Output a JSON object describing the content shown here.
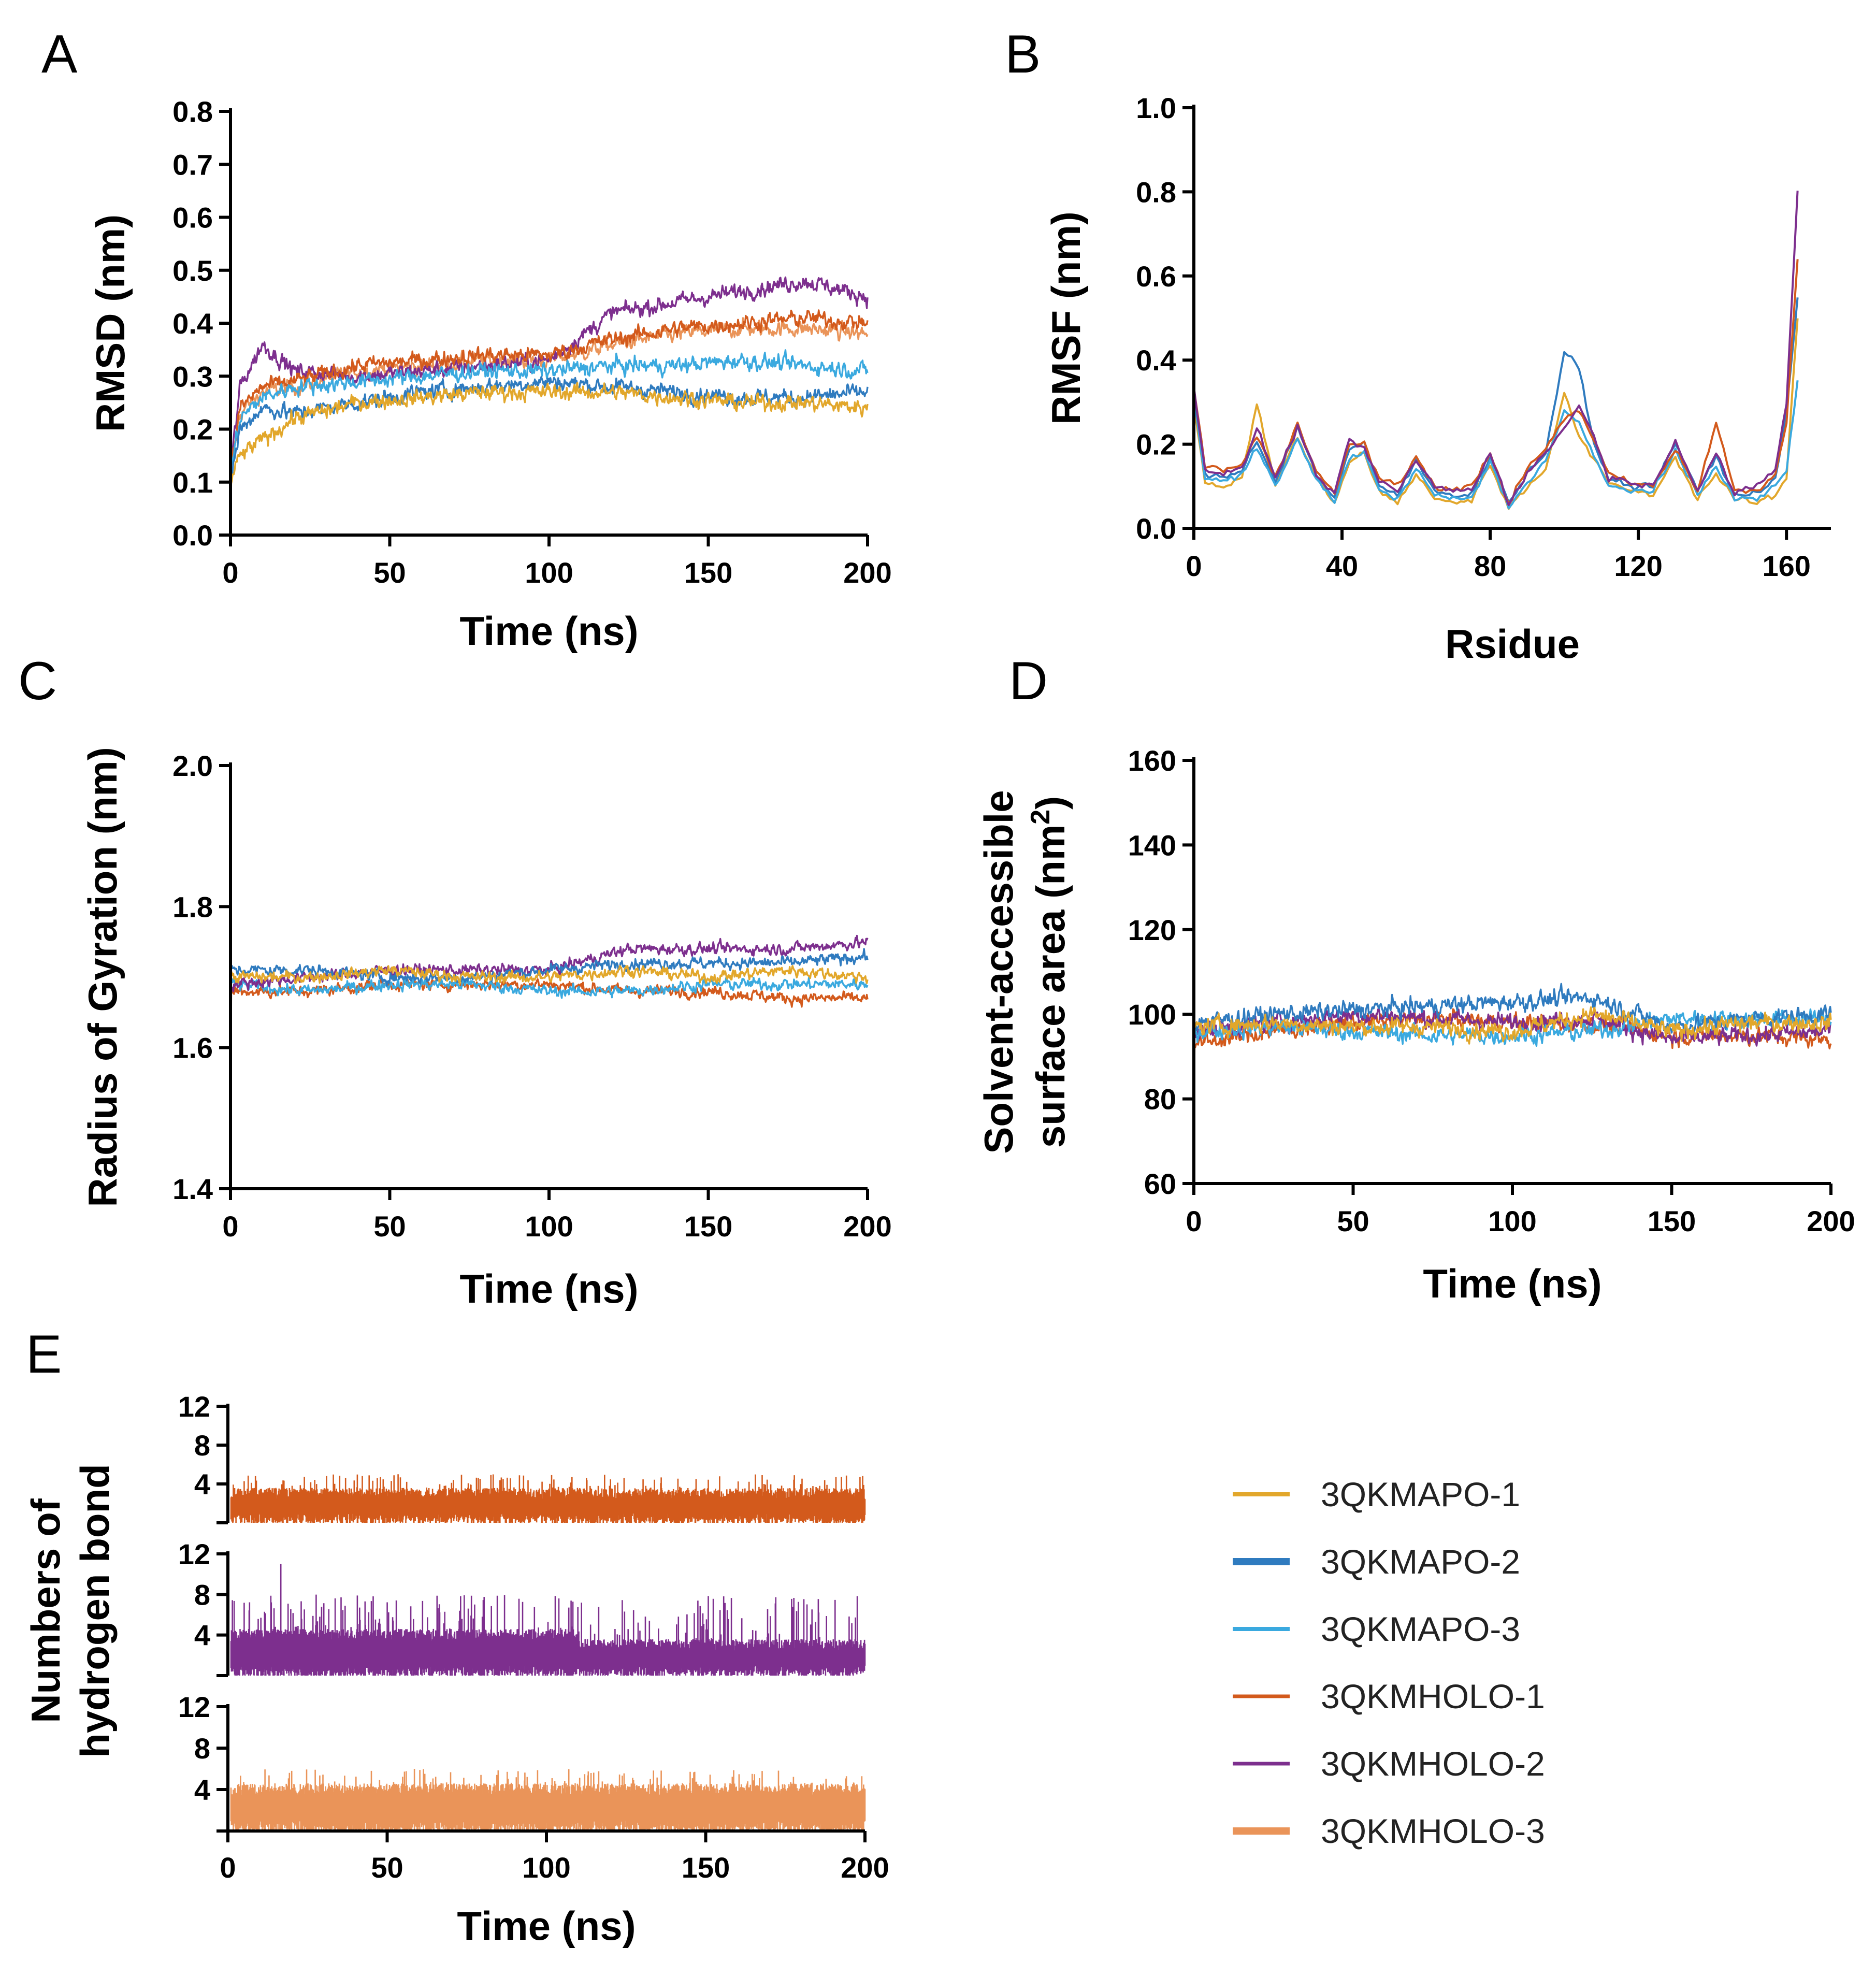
{
  "colors": {
    "3QKMAPO-1": "#E2A72B",
    "3QKMAPO-2": "#2F7BBF",
    "3QKMAPO-3": "#3AA9DF",
    "3QKMHOLO-1": "#D35A1C",
    "3QKMHOLO-2": "#7D2F8E",
    "3QKMHOLO-3": "#EA9459"
  },
  "legend": {
    "entries": [
      "3QKMAPO-1",
      "3QKMAPO-2",
      "3QKMAPO-3",
      "3QKMHOLO-1",
      "3QKMHOLO-2",
      "3QKMHOLO-3"
    ]
  },
  "chart_data": [
    {
      "panel": "A",
      "type": "line",
      "xlabel": "Time (ns)",
      "ylabel": "RMSD (nm)",
      "xlim": [
        0,
        200
      ],
      "ylim": [
        0,
        0.8
      ],
      "xticks": [
        "0",
        "50",
        "100",
        "150",
        "200"
      ],
      "yticks": [
        "0.0",
        "0.1",
        "0.2",
        "0.3",
        "0.4",
        "0.5",
        "0.6",
        "0.7",
        "0.8"
      ],
      "series": [
        {
          "name": "3QKMAPO-1",
          "x": [
            0,
            3,
            10,
            20,
            40,
            60,
            80,
            100,
            120,
            140,
            160,
            180,
            200
          ],
          "y": [
            0.1,
            0.15,
            0.18,
            0.22,
            0.25,
            0.26,
            0.27,
            0.27,
            0.27,
            0.26,
            0.25,
            0.25,
            0.24
          ]
        },
        {
          "name": "3QKMAPO-2",
          "x": [
            0,
            3,
            10,
            20,
            40,
            60,
            80,
            100,
            120,
            140,
            160,
            180,
            200
          ],
          "y": [
            0.1,
            0.2,
            0.24,
            0.23,
            0.25,
            0.27,
            0.28,
            0.29,
            0.28,
            0.27,
            0.26,
            0.26,
            0.27
          ]
        },
        {
          "name": "3QKMAPO-3",
          "x": [
            0,
            3,
            10,
            20,
            40,
            60,
            80,
            100,
            120,
            140,
            160,
            180,
            200
          ],
          "y": [
            0.12,
            0.22,
            0.26,
            0.28,
            0.29,
            0.3,
            0.31,
            0.31,
            0.32,
            0.32,
            0.33,
            0.32,
            0.31
          ]
        },
        {
          "name": "3QKMHOLO-1",
          "x": [
            0,
            3,
            10,
            20,
            40,
            60,
            80,
            100,
            120,
            140,
            160,
            180,
            200
          ],
          "y": [
            0.12,
            0.24,
            0.28,
            0.29,
            0.32,
            0.33,
            0.34,
            0.34,
            0.37,
            0.39,
            0.4,
            0.41,
            0.4
          ]
        },
        {
          "name": "3QKMHOLO-2",
          "x": [
            0,
            3,
            10,
            20,
            40,
            60,
            80,
            100,
            120,
            140,
            160,
            180,
            200
          ],
          "y": [
            0.12,
            0.28,
            0.36,
            0.31,
            0.3,
            0.31,
            0.32,
            0.33,
            0.42,
            0.44,
            0.46,
            0.48,
            0.45
          ]
        },
        {
          "name": "3QKMHOLO-3",
          "x": [
            0,
            3,
            10,
            20,
            40,
            60,
            80,
            100,
            120,
            140,
            160,
            180,
            200
          ],
          "y": [
            0.12,
            0.23,
            0.27,
            0.28,
            0.31,
            0.32,
            0.33,
            0.33,
            0.36,
            0.38,
            0.39,
            0.39,
            0.38
          ]
        }
      ]
    },
    {
      "panel": "B",
      "type": "line",
      "xlabel": "Rsidue",
      "ylabel": "RMSF (nm)",
      "xlim": [
        0,
        172
      ],
      "ylim": [
        0,
        1.0
      ],
      "xticks": [
        "0",
        "40",
        "80",
        "120",
        "160"
      ],
      "xtick_values": [
        0,
        40,
        80,
        120,
        160
      ],
      "yticks": [
        "0.0",
        "0.2",
        "0.4",
        "0.6",
        "0.8",
        "1.0"
      ],
      "series": [
        {
          "name": "3QKMAPO-1",
          "x": [
            0,
            3,
            8,
            13,
            17,
            22,
            28,
            33,
            38,
            42,
            46,
            50,
            55,
            60,
            65,
            70,
            75,
            80,
            85,
            90,
            95,
            100,
            104,
            108,
            112,
            118,
            124,
            130,
            136,
            141,
            146,
            152,
            157,
            160,
            163
          ],
          "y": [
            0.3,
            0.11,
            0.1,
            0.12,
            0.3,
            0.1,
            0.22,
            0.12,
            0.06,
            0.16,
            0.18,
            0.09,
            0.06,
            0.13,
            0.07,
            0.06,
            0.07,
            0.15,
            0.05,
            0.1,
            0.14,
            0.32,
            0.22,
            0.16,
            0.11,
            0.09,
            0.08,
            0.17,
            0.07,
            0.13,
            0.07,
            0.06,
            0.08,
            0.12,
            0.5
          ]
        },
        {
          "name": "3QKMAPO-2",
          "x": [
            0,
            3,
            8,
            13,
            17,
            22,
            28,
            33,
            38,
            42,
            46,
            50,
            55,
            60,
            65,
            70,
            75,
            80,
            85,
            90,
            95,
            100,
            104,
            108,
            112,
            118,
            124,
            130,
            136,
            141,
            146,
            152,
            157,
            160,
            163
          ],
          "y": [
            0.32,
            0.13,
            0.12,
            0.14,
            0.21,
            0.11,
            0.24,
            0.13,
            0.07,
            0.19,
            0.2,
            0.1,
            0.08,
            0.16,
            0.09,
            0.08,
            0.08,
            0.17,
            0.06,
            0.13,
            0.18,
            0.42,
            0.38,
            0.2,
            0.12,
            0.1,
            0.1,
            0.2,
            0.09,
            0.17,
            0.08,
            0.08,
            0.12,
            0.28,
            0.55
          ]
        },
        {
          "name": "3QKMAPO-3",
          "x": [
            0,
            3,
            8,
            13,
            17,
            22,
            28,
            33,
            38,
            42,
            46,
            50,
            55,
            60,
            65,
            70,
            75,
            80,
            85,
            90,
            95,
            100,
            104,
            108,
            112,
            118,
            124,
            130,
            136,
            141,
            146,
            152,
            157,
            160,
            163
          ],
          "y": [
            0.31,
            0.12,
            0.11,
            0.13,
            0.19,
            0.1,
            0.21,
            0.12,
            0.06,
            0.17,
            0.18,
            0.09,
            0.07,
            0.14,
            0.08,
            0.07,
            0.07,
            0.16,
            0.05,
            0.11,
            0.16,
            0.28,
            0.25,
            0.17,
            0.1,
            0.09,
            0.09,
            0.18,
            0.08,
            0.15,
            0.07,
            0.07,
            0.1,
            0.14,
            0.35
          ]
        },
        {
          "name": "3QKMHOLO-1",
          "x": [
            0,
            3,
            8,
            13,
            17,
            22,
            28,
            33,
            38,
            42,
            46,
            50,
            55,
            60,
            65,
            70,
            75,
            80,
            85,
            90,
            95,
            100,
            104,
            108,
            112,
            118,
            124,
            130,
            136,
            141,
            146,
            152,
            157,
            160,
            163
          ],
          "y": [
            0.33,
            0.15,
            0.14,
            0.15,
            0.22,
            0.12,
            0.25,
            0.14,
            0.08,
            0.2,
            0.2,
            0.12,
            0.1,
            0.17,
            0.1,
            0.09,
            0.1,
            0.18,
            0.06,
            0.14,
            0.19,
            0.26,
            0.28,
            0.21,
            0.13,
            0.11,
            0.1,
            0.19,
            0.09,
            0.25,
            0.09,
            0.09,
            0.13,
            0.25,
            0.64
          ]
        },
        {
          "name": "3QKMHOLO-2",
          "x": [
            0,
            3,
            8,
            13,
            17,
            22,
            28,
            33,
            38,
            42,
            46,
            50,
            55,
            60,
            65,
            70,
            75,
            80,
            85,
            90,
            95,
            100,
            104,
            108,
            112,
            118,
            124,
            130,
            136,
            141,
            146,
            152,
            157,
            160,
            163
          ],
          "y": [
            0.34,
            0.14,
            0.13,
            0.14,
            0.24,
            0.12,
            0.24,
            0.13,
            0.08,
            0.21,
            0.19,
            0.11,
            0.09,
            0.16,
            0.1,
            0.09,
            0.09,
            0.18,
            0.06,
            0.13,
            0.18,
            0.24,
            0.29,
            0.22,
            0.12,
            0.11,
            0.1,
            0.21,
            0.09,
            0.18,
            0.08,
            0.1,
            0.14,
            0.3,
            0.8
          ]
        }
      ]
    },
    {
      "panel": "C",
      "type": "line",
      "xlabel": "Time (ns)",
      "ylabel": "Radius of Gyration (nm)",
      "xlim": [
        0,
        200
      ],
      "ylim": [
        1.4,
        2.0
      ],
      "xticks": [
        "0",
        "50",
        "100",
        "150",
        "200"
      ],
      "yticks": [
        "1.4",
        "1.6",
        "1.8",
        "2.0"
      ],
      "series": [
        {
          "name": "3QKMAPO-1",
          "x": [
            0,
            25,
            50,
            75,
            100,
            125,
            150,
            175,
            200
          ],
          "y": [
            1.7,
            1.7,
            1.71,
            1.7,
            1.7,
            1.71,
            1.7,
            1.71,
            1.7
          ]
        },
        {
          "name": "3QKMAPO-2",
          "x": [
            0,
            25,
            50,
            75,
            100,
            125,
            150,
            175,
            200
          ],
          "y": [
            1.71,
            1.71,
            1.7,
            1.7,
            1.71,
            1.72,
            1.72,
            1.72,
            1.73
          ]
        },
        {
          "name": "3QKMAPO-3",
          "x": [
            0,
            25,
            50,
            75,
            100,
            125,
            150,
            175,
            200
          ],
          "y": [
            1.69,
            1.68,
            1.69,
            1.69,
            1.68,
            1.68,
            1.69,
            1.69,
            1.69
          ]
        },
        {
          "name": "3QKMHOLO-1",
          "x": [
            0,
            25,
            50,
            75,
            100,
            125,
            150,
            175,
            200
          ],
          "y": [
            1.68,
            1.68,
            1.69,
            1.69,
            1.69,
            1.68,
            1.68,
            1.67,
            1.67
          ]
        },
        {
          "name": "3QKMHOLO-2",
          "x": [
            0,
            25,
            50,
            75,
            100,
            125,
            150,
            175,
            200
          ],
          "y": [
            1.69,
            1.7,
            1.71,
            1.71,
            1.71,
            1.74,
            1.74,
            1.74,
            1.75
          ]
        }
      ]
    },
    {
      "panel": "D",
      "type": "line",
      "xlabel": "Time (ns)",
      "ylabel": "Solvent-accessible",
      "ylabel2": "surface area (nm",
      "ylabel2_sup": "2",
      "ylabel2_tail": ")",
      "xlim": [
        0,
        200
      ],
      "ylim": [
        60,
        160
      ],
      "xticks": [
        "0",
        "50",
        "100",
        "150",
        "200"
      ],
      "yticks": [
        "60",
        "80",
        "100",
        "120",
        "140",
        "160"
      ],
      "series": [
        {
          "name": "3QKMAPO-1",
          "x": [
            0,
            25,
            50,
            75,
            100,
            125,
            150,
            175,
            200
          ],
          "y": [
            97,
            98,
            97,
            97,
            96,
            100,
            96,
            98,
            98
          ]
        },
        {
          "name": "3QKMAPO-2",
          "x": [
            0,
            25,
            50,
            75,
            100,
            125,
            150,
            175,
            200
          ],
          "y": [
            98,
            100,
            101,
            102,
            103,
            104,
            97,
            99,
            100
          ]
        },
        {
          "name": "3QKMAPO-3",
          "x": [
            0,
            25,
            50,
            75,
            100,
            125,
            150,
            175,
            200
          ],
          "y": [
            96,
            97,
            96,
            95,
            95,
            96,
            99,
            99,
            99
          ]
        },
        {
          "name": "3QKMHOLO-1",
          "x": [
            0,
            25,
            50,
            75,
            100,
            125,
            150,
            175,
            200
          ],
          "y": [
            93,
            96,
            98,
            99,
            98,
            98,
            95,
            95,
            94
          ]
        },
        {
          "name": "3QKMHOLO-2",
          "x": [
            0,
            25,
            50,
            75,
            100,
            125,
            150,
            175,
            200
          ],
          "y": [
            96,
            98,
            100,
            99,
            98,
            99,
            94,
            95,
            96
          ]
        }
      ]
    },
    {
      "panel": "E",
      "type": "bar",
      "ylabel": "Numbers of",
      "ylabel2": "hydrogen bond",
      "xlabel": "Time (ns)",
      "xlim": [
        0,
        200
      ],
      "xticks": [
        "0",
        "50",
        "100",
        "150",
        "200"
      ],
      "subplots": [
        {
          "name": "3QKMHOLO-1",
          "ylim": [
            0,
            12
          ],
          "yticks": [
            "4",
            "8",
            "12"
          ],
          "typical_max": 3,
          "typical_min": 1,
          "occasional_max": 5
        },
        {
          "name": "3QKMHOLO-2",
          "ylim": [
            0,
            12
          ],
          "yticks": [
            "4",
            "8",
            "12"
          ],
          "typical_max_before_110ns": 4,
          "typical_max_after_110ns": 3,
          "typical_min": 1,
          "occasional_max": 8,
          "spike_max": 11
        },
        {
          "name": "3QKMHOLO-3",
          "ylim": [
            0,
            12
          ],
          "yticks": [
            "4",
            "8",
            "12"
          ],
          "typical_max": 4,
          "typical_min": 1,
          "occasional_max": 6
        }
      ]
    }
  ],
  "panels": {
    "A": "A",
    "B": "B",
    "C": "C",
    "D": "D",
    "E": "E"
  }
}
